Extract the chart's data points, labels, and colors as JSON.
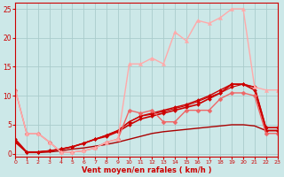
{
  "bg_color": "#cce8e8",
  "grid_color": "#aacccc",
  "xlabel": "Vent moyen/en rafales ( km/h )",
  "xlabel_color": "#cc0000",
  "tick_color": "#cc0000",
  "xlim": [
    0,
    23
  ],
  "ylim": [
    -0.5,
    26
  ],
  "yticks": [
    0,
    5,
    10,
    15,
    20,
    25
  ],
  "xticks": [
    0,
    1,
    2,
    3,
    4,
    5,
    6,
    7,
    8,
    9,
    10,
    11,
    12,
    13,
    14,
    15,
    16,
    17,
    18,
    19,
    20,
    21,
    22,
    23
  ],
  "series": [
    {
      "x": [
        0,
        1,
        2,
        3,
        4,
        5,
        6,
        7,
        8,
        9,
        10,
        11,
        12,
        13,
        14,
        15,
        16,
        17,
        18,
        19,
        20,
        21,
        22,
        23
      ],
      "y": [
        2.0,
        0.2,
        0.2,
        0.3,
        0.5,
        0.8,
        1.0,
        1.3,
        1.6,
        2.0,
        2.5,
        3.0,
        3.5,
        3.8,
        4.0,
        4.2,
        4.4,
        4.6,
        4.8,
        5.0,
        5.0,
        4.8,
        4.0,
        4.0
      ],
      "color": "#aa0000",
      "marker": null,
      "linewidth": 1.0,
      "markersize": 0
    },
    {
      "x": [
        0,
        1,
        2,
        3,
        4,
        5,
        6,
        7,
        8,
        9,
        10,
        11,
        12,
        13,
        14,
        15,
        16,
        17,
        18,
        19,
        20,
        21,
        22,
        23
      ],
      "y": [
        2.5,
        0.3,
        0.3,
        0.5,
        0.8,
        1.2,
        1.8,
        2.5,
        3.0,
        3.8,
        5.0,
        6.0,
        6.5,
        7.0,
        7.5,
        8.0,
        8.5,
        9.5,
        10.5,
        12.0,
        12.0,
        11.0,
        4.0,
        4.0
      ],
      "color": "#cc0000",
      "marker": "D",
      "linewidth": 1.2,
      "markersize": 2.0
    },
    {
      "x": [
        0,
        1,
        2,
        3,
        4,
        5,
        6,
        7,
        8,
        9,
        10,
        11,
        12,
        13,
        14,
        15,
        16,
        17,
        18,
        19,
        20,
        21,
        22,
        23
      ],
      "y": [
        2.2,
        0.3,
        0.3,
        0.5,
        0.8,
        1.2,
        1.8,
        2.5,
        3.2,
        4.0,
        5.5,
        6.5,
        7.0,
        7.5,
        8.0,
        8.5,
        9.2,
        10.0,
        11.0,
        12.0,
        12.0,
        11.5,
        4.5,
        4.5
      ],
      "color": "#cc0000",
      "marker": "D",
      "linewidth": 1.0,
      "markersize": 2.0
    },
    {
      "x": [
        0,
        1,
        2,
        3,
        4,
        5,
        6,
        7,
        8,
        9,
        10,
        11,
        12,
        13,
        14,
        15,
        16,
        17,
        18,
        19,
        20,
        21,
        22,
        23
      ],
      "y": [
        2.0,
        0.3,
        0.3,
        0.5,
        0.8,
        1.2,
        1.8,
        2.5,
        3.2,
        4.0,
        5.5,
        6.5,
        6.8,
        7.3,
        7.8,
        8.3,
        9.0,
        9.8,
        10.5,
        11.5,
        12.0,
        11.5,
        4.5,
        4.5
      ],
      "color": "#cc0000",
      "marker": "D",
      "linewidth": 0.8,
      "markersize": 2.0
    },
    {
      "x": [
        0,
        1,
        2,
        3,
        4,
        5,
        6,
        7,
        8,
        9,
        10,
        11,
        12,
        13,
        14,
        15,
        16,
        17,
        18,
        19,
        20,
        21,
        22,
        23
      ],
      "y": [
        11.0,
        3.5,
        3.5,
        2.0,
        0.3,
        0.3,
        0.5,
        1.0,
        2.0,
        2.5,
        7.5,
        7.0,
        7.5,
        5.5,
        5.5,
        7.5,
        7.5,
        7.5,
        9.5,
        10.5,
        10.5,
        10.0,
        3.5,
        3.5
      ],
      "color": "#ee6666",
      "marker": "D",
      "linewidth": 1.0,
      "markersize": 2.5
    },
    {
      "x": [
        0,
        1,
        2,
        3,
        4,
        5,
        6,
        7,
        8,
        9,
        10,
        11,
        12,
        13,
        14,
        15,
        16,
        17,
        18,
        19,
        20,
        21,
        22,
        23
      ],
      "y": [
        11.0,
        3.5,
        3.5,
        2.0,
        0.3,
        0.3,
        0.5,
        1.0,
        2.0,
        2.5,
        15.5,
        15.5,
        16.5,
        15.5,
        21.0,
        19.5,
        23.0,
        22.5,
        23.5,
        25.0,
        25.0,
        11.5,
        11.0,
        11.0
      ],
      "color": "#ffaaaa",
      "marker": "^",
      "linewidth": 1.0,
      "markersize": 3.0
    }
  ]
}
